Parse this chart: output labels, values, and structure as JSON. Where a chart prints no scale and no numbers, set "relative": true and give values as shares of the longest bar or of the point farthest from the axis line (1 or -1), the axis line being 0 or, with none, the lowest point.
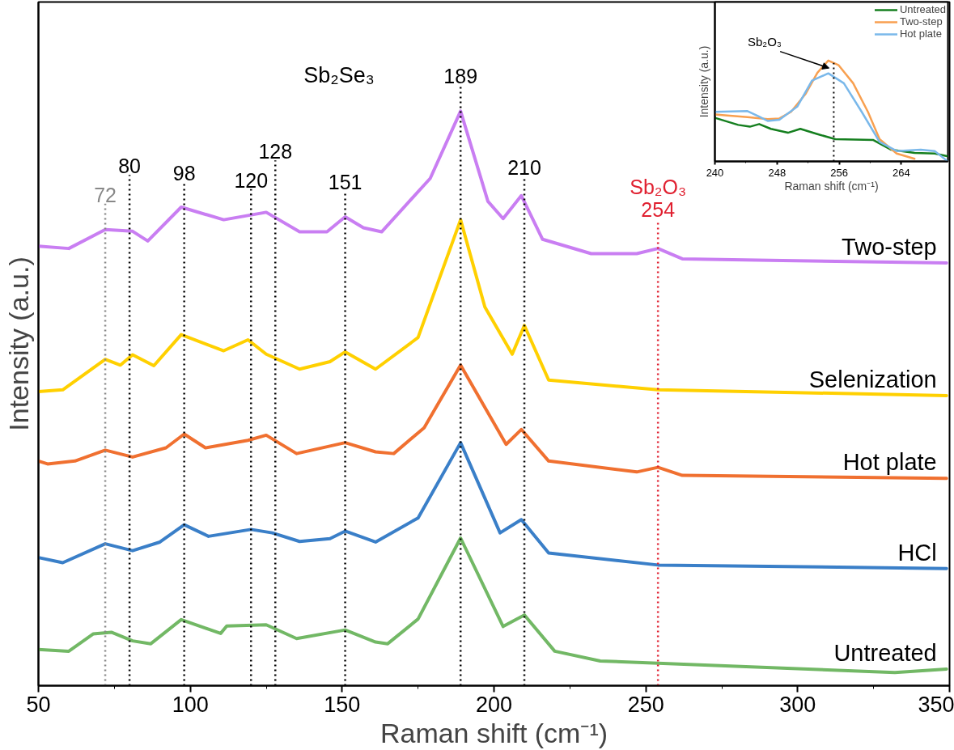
{
  "chart_data": [
    {
      "type": "line",
      "relative": true,
      "xlabel": "Raman shift (cm⁻¹)",
      "ylabel": "Intensity (a.u.)",
      "xlim": [
        50,
        350
      ],
      "xticks": [
        50,
        100,
        150,
        200,
        250,
        300,
        350
      ],
      "tick_labels": "x",
      "grid": false,
      "legend": false,
      "line_style": "solid",
      "series": [
        {
          "name": "Two-step",
          "color": "#c97ef2",
          "x": [
            50,
            60,
            72,
            81,
            86,
            97,
            111,
            125,
            136,
            145,
            151,
            157,
            163,
            179,
            189,
            198,
            203,
            209,
            216,
            232,
            247,
            254,
            262,
            295,
            349
          ],
          "values": [
            0.765,
            0.761,
            0.794,
            0.791,
            0.774,
            0.833,
            0.811,
            0.824,
            0.79,
            0.79,
            0.816,
            0.797,
            0.79,
            0.883,
            1.0,
            0.843,
            0.813,
            0.853,
            0.777,
            0.752,
            0.752,
            0.761,
            0.743,
            0.74,
            0.736
          ]
        },
        {
          "name": "Selenization",
          "color": "#ffd000",
          "x": [
            50,
            58,
            72,
            77,
            81,
            88,
            97,
            111,
            119,
            125,
            136,
            146,
            151,
            161,
            175,
            189,
            197,
            206,
            210,
            218,
            254,
            349
          ],
          "values": [
            0.512,
            0.515,
            0.568,
            0.558,
            0.576,
            0.557,
            0.611,
            0.583,
            0.602,
            0.577,
            0.551,
            0.564,
            0.581,
            0.551,
            0.606,
            0.811,
            0.659,
            0.577,
            0.627,
            0.532,
            0.515,
            0.505
          ]
        },
        {
          "name": "Hot plate",
          "color": "#f07030",
          "x": [
            50,
            53,
            62,
            72,
            81,
            92,
            98,
            105,
            119,
            125,
            135,
            151,
            161,
            167,
            177,
            189,
            204,
            209,
            218,
            247,
            254,
            262,
            349
          ],
          "values": [
            0.391,
            0.386,
            0.391,
            0.41,
            0.398,
            0.414,
            0.438,
            0.414,
            0.427,
            0.436,
            0.404,
            0.423,
            0.407,
            0.404,
            0.449,
            0.558,
            0.42,
            0.446,
            0.391,
            0.372,
            0.38,
            0.366,
            0.361
          ]
        },
        {
          "name": "HCl",
          "color": "#3a7fc8",
          "x": [
            50,
            58,
            72,
            81,
            90,
            98,
            106,
            120,
            127,
            136,
            146,
            151,
            161,
            175,
            189,
            202,
            209,
            218,
            254,
            349
          ],
          "values": [
            0.223,
            0.214,
            0.247,
            0.235,
            0.25,
            0.28,
            0.26,
            0.272,
            0.266,
            0.251,
            0.256,
            0.269,
            0.25,
            0.292,
            0.423,
            0.266,
            0.289,
            0.231,
            0.21,
            0.204
          ]
        },
        {
          "name": "Untreated",
          "color": "#72b865",
          "x": [
            50,
            60,
            68,
            74,
            81,
            87,
            97,
            110,
            112,
            125,
            135,
            151,
            161,
            165,
            175,
            189,
            203,
            210,
            220,
            235,
            332,
            349
          ],
          "values": [
            0.063,
            0.06,
            0.09,
            0.093,
            0.078,
            0.073,
            0.115,
            0.091,
            0.104,
            0.106,
            0.082,
            0.097,
            0.076,
            0.073,
            0.116,
            0.257,
            0.103,
            0.123,
            0.06,
            0.043,
            0.023,
            0.029
          ]
        }
      ],
      "ref_lines": [
        {
          "axis": "x",
          "value": 72,
          "label": "72",
          "color": "#888888",
          "line_style": "dotted"
        },
        {
          "axis": "x",
          "value": 80,
          "label": "80",
          "color": "#000000",
          "line_style": "dotted"
        },
        {
          "axis": "x",
          "value": 98,
          "label": "98",
          "color": "#000000",
          "line_style": "dotted"
        },
        {
          "axis": "x",
          "value": 120,
          "label": "120",
          "color": "#000000",
          "line_style": "dotted"
        },
        {
          "axis": "x",
          "value": 128,
          "label": "128",
          "color": "#000000",
          "line_style": "dotted"
        },
        {
          "axis": "x",
          "value": 151,
          "label": "151",
          "color": "#000000",
          "line_style": "dotted"
        },
        {
          "axis": "x",
          "value": 189,
          "label": "189",
          "color": "#000000",
          "line_style": "dotted"
        },
        {
          "axis": "x",
          "value": 210,
          "label": "210",
          "color": "#000000",
          "line_style": "dotted"
        },
        {
          "axis": "x",
          "value": 254,
          "label": "Sb₂O₃\n254",
          "color": "#e02030",
          "line_style": "dotted"
        }
      ],
      "annotations": [
        "Sb₂Se₃"
      ]
    },
    {
      "type": "line",
      "relative": true,
      "xlabel": "Raman shift (cm⁻¹)",
      "ylabel": "Intensity (a.u.)",
      "xlim": [
        240,
        270
      ],
      "xticks": [
        240,
        248,
        256,
        264
      ],
      "tick_labels": "x",
      "grid": false,
      "legend": "top right",
      "line_style": "solid",
      "series": [
        {
          "name": "Untreated",
          "color": "#157f1f",
          "x": [
            240,
            243,
            244.5,
            245.7,
            247.2,
            249.4,
            251,
            253.2,
            255.5,
            260.4,
            262.7,
            265.7,
            268.3,
            269.9
          ],
          "values": [
            0.432,
            0.362,
            0.344,
            0.37,
            0.323,
            0.284,
            0.323,
            0.271,
            0.22,
            0.212,
            0.116,
            0.085,
            0.078,
            0.052
          ]
        },
        {
          "name": "Two-step",
          "color": "#f8a050",
          "x": [
            240,
            244.2,
            246.8,
            248.3,
            249.8,
            251.7,
            253.2,
            254.6,
            255.9,
            257.8,
            259.7,
            261.2,
            263.4,
            265.7
          ],
          "values": [
            0.465,
            0.439,
            0.419,
            0.426,
            0.491,
            0.672,
            0.879,
            1.0,
            0.956,
            0.775,
            0.491,
            0.22,
            0.078,
            0.026
          ]
        },
        {
          "name": "Hot plate",
          "color": "#7ab8ea",
          "x": [
            240,
            244.2,
            245.7,
            246.8,
            248.3,
            250.6,
            252.5,
            254.6,
            256.6,
            258.9,
            261.2,
            263.4,
            266.5,
            268.3,
            269.9
          ],
          "values": [
            0.491,
            0.499,
            0.444,
            0.401,
            0.413,
            0.543,
            0.801,
            0.873,
            0.775,
            0.491,
            0.194,
            0.103,
            0.116,
            0.103,
            0.005
          ]
        }
      ],
      "ref_lines": [
        {
          "axis": "x",
          "value": 255.3,
          "color": "#000000",
          "line_style": "dotted"
        }
      ],
      "annotations": [
        {
          "text": "Sb₂O₃",
          "x": 254.9,
          "y": 0.92
        }
      ]
    }
  ]
}
